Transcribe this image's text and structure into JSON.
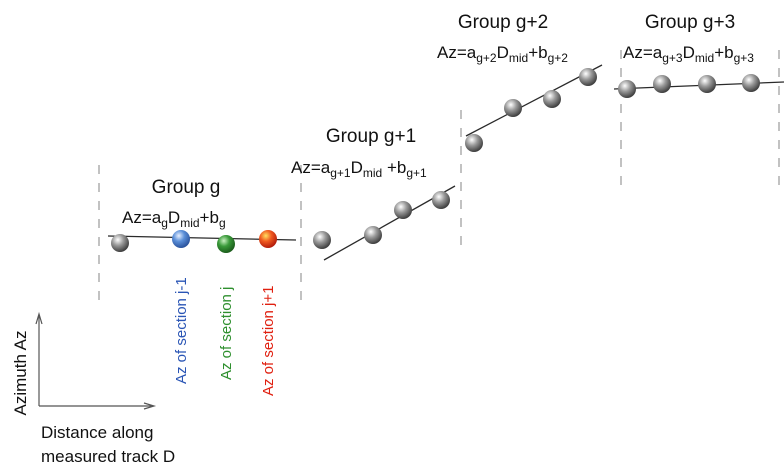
{
  "colors": {
    "point_gray": "#6e6e6e",
    "section_prev": "#3b73c6",
    "section_current": "#2e8f2e",
    "section_next": "#e23b1c"
  },
  "groups": [
    {
      "title": "Group g",
      "eq_prefix": "Az=a",
      "eq_sub_a": "g",
      "eq_mid": "D",
      "eq_sub_d": "mid",
      "eq_plus": "+b",
      "eq_sub_b": "g"
    },
    {
      "title": "Group g+1",
      "eq_prefix": "Az=a",
      "eq_sub_a": "g+1",
      "eq_mid": "D",
      "eq_sub_d": "mid",
      "eq_plus": " +b",
      "eq_sub_b": "g+1"
    },
    {
      "title": "Group g+2",
      "eq_prefix": "Az=a",
      "eq_sub_a": "g+2",
      "eq_mid": "D",
      "eq_sub_d": "mid",
      "eq_plus": "+b",
      "eq_sub_b": "g+2"
    },
    {
      "title": "Group g+3",
      "eq_prefix": "Az=a",
      "eq_sub_a": "g+3",
      "eq_mid": "D",
      "eq_sub_d": "mid",
      "eq_plus": "+b",
      "eq_sub_b": "g+3"
    }
  ],
  "section_labels": {
    "prev": "Az of section j-1",
    "current": "Az of section j",
    "next": "Az of section j+1"
  },
  "axes": {
    "y_label": "Azimuth Az",
    "x_label_line1": "Distance along",
    "x_label_line2": "measured track D"
  }
}
